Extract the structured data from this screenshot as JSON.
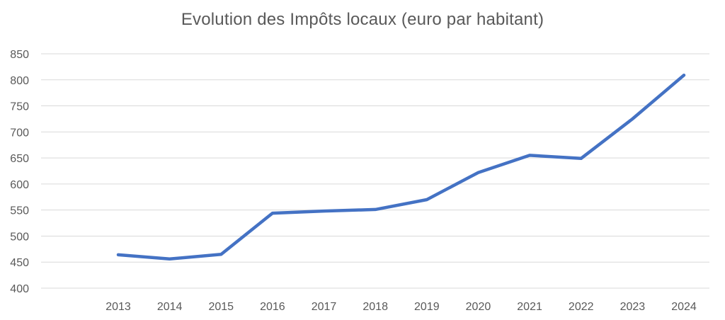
{
  "chart_data": {
    "type": "line",
    "title": "Evolution des Impôts locaux (euro par habitant)",
    "xlabel": "",
    "ylabel": "",
    "categories": [
      "2013",
      "2014",
      "2015",
      "2016",
      "2017",
      "2018",
      "2019",
      "2020",
      "2021",
      "2022",
      "2023",
      "2024"
    ],
    "series": [
      {
        "values": [
          464,
          456,
          465,
          544,
          548,
          551,
          570,
          622,
          655,
          649,
          725,
          809
        ],
        "color": "#4472c4"
      }
    ],
    "ylim": [
      400,
      850
    ],
    "yticks": [
      "400",
      "450",
      "500",
      "550",
      "600",
      "650",
      "700",
      "750",
      "800",
      "850"
    ],
    "grid": true,
    "legend": "none"
  }
}
